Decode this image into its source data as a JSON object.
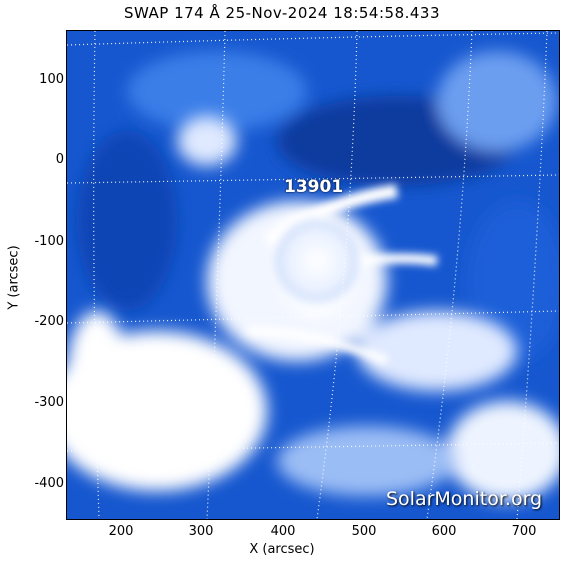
{
  "title": "SWAP 174 Å 25-Nov-2024 18:54:58.433",
  "axes": {
    "xlabel": "X (arcsec)",
    "ylabel": "Y (arcsec)",
    "x_ticks": [
      "200",
      "300",
      "400",
      "500",
      "600",
      "700"
    ],
    "y_ticks": [
      "100",
      "0",
      "-100",
      "-200",
      "-300",
      "-400"
    ]
  },
  "annotations": {
    "active_region": "13901",
    "watermark": "SolarMonitor.org"
  },
  "colors": {
    "background_blue": "#0b3fb0",
    "mid_blue": "#2f6fe0",
    "bright_white": "#ffffff"
  }
}
